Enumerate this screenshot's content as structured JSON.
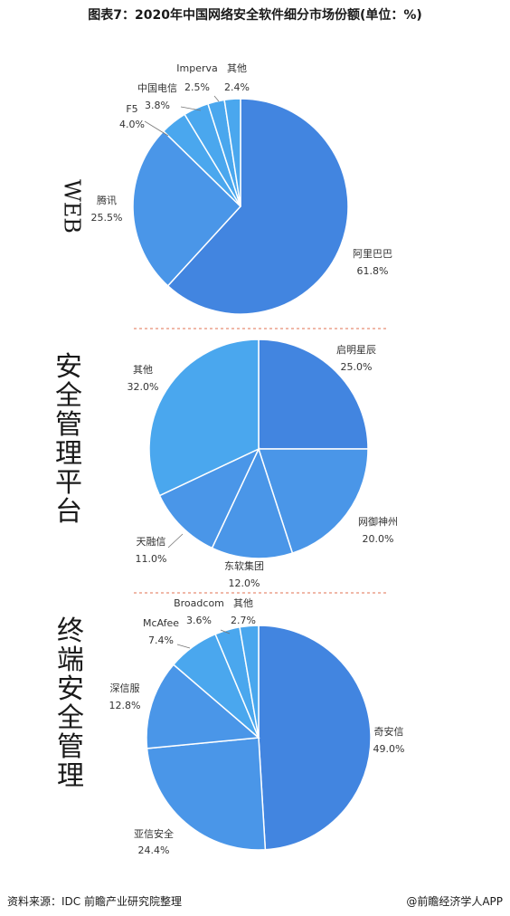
{
  "title": "图表7：2020年中国网络安全软件细分市场份额(单位：%)",
  "source": "资料来源：IDC 前瞻产业研究院整理",
  "credit": "@前瞻经济学人APP",
  "watermark": "前瞻产业研究院",
  "colors": {
    "dark": "#4285e0",
    "medium": "#4a96e8",
    "light": "#4aa7ee",
    "stroke": "#ffffff",
    "separator": "#e07050"
  },
  "chart_data": [
    {
      "type": "pie",
      "title": "WEB",
      "slices": [
        {
          "label": "阿里巴巴",
          "value_label": "61.8%",
          "value": 61.8
        },
        {
          "label": "腾讯",
          "value_label": "25.5%",
          "value": 25.5
        },
        {
          "label": "F5",
          "value_label": "4.0%",
          "value": 4.0
        },
        {
          "label": "中国电信",
          "value_label": "3.8%",
          "value": 3.8
        },
        {
          "label": "Imperva",
          "value_label": "2.5%",
          "value": 2.5
        },
        {
          "label": "其他",
          "value_label": "2.4%",
          "value": 2.4
        }
      ]
    },
    {
      "type": "pie",
      "title": "安全管理平台",
      "slices": [
        {
          "label": "启明星辰",
          "value_label": "25.0%",
          "value": 25.0
        },
        {
          "label": "网御神州",
          "value_label": "20.0%",
          "value": 20.0
        },
        {
          "label": "东软集团",
          "value_label": "12.0%",
          "value": 12.0
        },
        {
          "label": "天融信",
          "value_label": "11.0%",
          "value": 11.0
        },
        {
          "label": "其他",
          "value_label": "32.0%",
          "value": 32.0
        }
      ]
    },
    {
      "type": "pie",
      "title": "终端安全管理",
      "slices": [
        {
          "label": "奇安信",
          "value_label": "49.0%",
          "value": 49.0
        },
        {
          "label": "亚信安全",
          "value_label": "24.4%",
          "value": 24.4
        },
        {
          "label": "深信服",
          "value_label": "12.8%",
          "value": 12.8
        },
        {
          "label": "McAfee",
          "value_label": "7.4%",
          "value": 7.4
        },
        {
          "label": "Broadcom",
          "value_label": "3.6%",
          "value": 3.6
        },
        {
          "label": "其他",
          "value_label": "2.7%",
          "value": 2.7
        }
      ]
    }
  ]
}
